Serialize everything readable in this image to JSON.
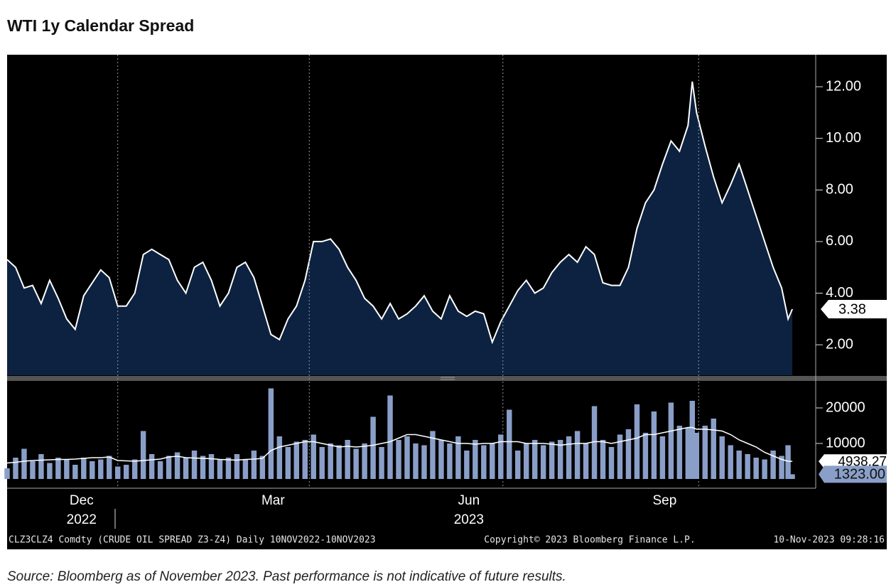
{
  "chart_data": [
    {
      "type": "area",
      "title": "WTI 1y Calendar Spread",
      "x": [
        0,
        4,
        8,
        12,
        16,
        20,
        24,
        28,
        32,
        36,
        40,
        44,
        48,
        52,
        56,
        60,
        64,
        68,
        72,
        76,
        80,
        84,
        88,
        92,
        96,
        100,
        104,
        108,
        112,
        116,
        120,
        124,
        128,
        132,
        136,
        140,
        144,
        148,
        152,
        156,
        160,
        164,
        168,
        172,
        176,
        180,
        184,
        188,
        192,
        196,
        200,
        204,
        208,
        212,
        216,
        220,
        224,
        228,
        232,
        236,
        240,
        244,
        248,
        252,
        256,
        260,
        264,
        268,
        272,
        276,
        280,
        284,
        288,
        292,
        296,
        300,
        304,
        308,
        312,
        316,
        320,
        322,
        324,
        328,
        332,
        336,
        340,
        344,
        348,
        352,
        356,
        360,
        364,
        367,
        369
      ],
      "values": [
        5.3,
        5.0,
        4.2,
        4.3,
        3.6,
        4.5,
        3.8,
        3.0,
        2.6,
        3.9,
        4.4,
        4.9,
        4.6,
        3.5,
        3.5,
        4.0,
        5.5,
        5.7,
        5.5,
        5.3,
        4.5,
        4.0,
        5.0,
        5.2,
        4.5,
        3.5,
        4.0,
        5.0,
        5.2,
        4.6,
        3.5,
        2.4,
        2.2,
        3.0,
        3.5,
        4.5,
        6.0,
        6.0,
        6.1,
        5.7,
        5.0,
        4.5,
        3.8,
        3.5,
        3.0,
        3.6,
        3.0,
        3.2,
        3.5,
        3.9,
        3.3,
        3.0,
        3.9,
        3.3,
        3.1,
        3.3,
        3.2,
        2.1,
        2.9,
        3.5,
        4.1,
        4.5,
        4.0,
        4.2,
        4.8,
        5.2,
        5.5,
        5.2,
        5.8,
        5.5,
        4.4,
        4.3,
        4.3,
        5.0,
        6.5,
        7.5,
        8.0,
        9.0,
        9.9,
        9.5,
        10.5,
        12.2,
        11.0,
        9.7,
        8.5,
        7.5,
        8.2,
        9.0,
        8.0,
        7.0,
        6.0,
        5.0,
        4.2,
        3.0,
        3.38
      ],
      "color": "#ffffff",
      "fill": "#0c2240",
      "xlim": [
        0,
        380
      ],
      "ylim": [
        0.82,
        13.24
      ],
      "yticks": [
        {
          "value": 2,
          "label": "2.00"
        },
        {
          "value": 4,
          "label": "4.00"
        },
        {
          "value": 6,
          "label": "6.00"
        },
        {
          "value": 8,
          "label": "8.00"
        },
        {
          "value": 10,
          "label": "10.00"
        },
        {
          "value": 12,
          "label": "12.00"
        }
      ],
      "xticks": [
        {
          "value": 35,
          "label": "Dec"
        },
        {
          "value": 125,
          "label": "Mar"
        },
        {
          "value": 217,
          "label": "Jun"
        },
        {
          "value": 309,
          "label": "Sep"
        }
      ],
      "year_ticks": [
        {
          "value": 35,
          "label": "2022"
        },
        {
          "value": 217,
          "label": "2023"
        }
      ],
      "xgrid": [
        52,
        142,
        233,
        325
      ]
    },
    {
      "type": "bar",
      "x": [
        0,
        4,
        8,
        12,
        16,
        20,
        24,
        28,
        32,
        36,
        40,
        44,
        48,
        52,
        56,
        60,
        64,
        68,
        72,
        76,
        80,
        84,
        88,
        92,
        96,
        100,
        104,
        108,
        112,
        116,
        120,
        124,
        128,
        132,
        136,
        140,
        144,
        148,
        152,
        156,
        160,
        164,
        168,
        172,
        176,
        180,
        184,
        188,
        192,
        196,
        200,
        204,
        208,
        212,
        216,
        220,
        224,
        228,
        232,
        236,
        240,
        244,
        248,
        252,
        256,
        260,
        264,
        268,
        272,
        276,
        280,
        284,
        288,
        292,
        296,
        300,
        304,
        308,
        312,
        316,
        320,
        322,
        324,
        328,
        332,
        336,
        340,
        344,
        348,
        352,
        356,
        360,
        364,
        367,
        369
      ],
      "series": [
        {
          "color": "#8a9fc8",
          "last_value_label": "1323.00",
          "values": [
            3000,
            6000,
            8500,
            5000,
            7000,
            4500,
            6000,
            5500,
            4000,
            6000,
            5000,
            5500,
            6500,
            3500,
            4000,
            5500,
            13500,
            7000,
            5000,
            6500,
            7500,
            6000,
            8000,
            6500,
            7000,
            5500,
            6000,
            7000,
            5500,
            8000,
            6500,
            25500,
            12000,
            9000,
            10500,
            11000,
            12500,
            9000,
            10000,
            9500,
            11000,
            8500,
            10000,
            17500,
            9000,
            23500,
            11000,
            12000,
            10000,
            9500,
            13500,
            11000,
            10000,
            12000,
            8000,
            11000,
            9500,
            10000,
            12500,
            19500,
            8000,
            10000,
            11000,
            9500,
            10500,
            11000,
            12000,
            13500,
            10000,
            20500,
            11000,
            9000,
            12500,
            14000,
            21000,
            13000,
            19000,
            12000,
            21500,
            15000,
            14500,
            22000,
            13000,
            15000,
            17000,
            12000,
            9500,
            8000,
            7000,
            6000,
            5500,
            8000,
            6500,
            9500,
            1323
          ]
        },
        {
          "color": "#ffffff",
          "last_value_label": "4938.27",
          "values": [
            4500,
            4700,
            5000,
            5200,
            5300,
            5400,
            5500,
            5500,
            5600,
            5800,
            6000,
            6000,
            6200,
            5200,
            5100,
            5000,
            5200,
            5400,
            5600,
            6200,
            6400,
            6000,
            5900,
            5800,
            5700,
            5500,
            5400,
            5300,
            5500,
            5600,
            5800,
            8000,
            9000,
            9500,
            10000,
            10500,
            10500,
            10000,
            9500,
            9000,
            9200,
            9000,
            9200,
            9500,
            10000,
            10500,
            11500,
            12500,
            12500,
            12000,
            11500,
            11000,
            10500,
            10000,
            10000,
            9800,
            10000,
            10000,
            10500,
            10500,
            10500,
            10000,
            10000,
            10000,
            9800,
            9500,
            9800,
            10000,
            10000,
            10500,
            10500,
            10000,
            10500,
            11000,
            11500,
            12500,
            12500,
            13000,
            13500,
            14000,
            14500,
            14500,
            14000,
            14000,
            13800,
            13500,
            12500,
            11000,
            10000,
            9000,
            7500,
            6500,
            5500,
            5000,
            4938.27
          ]
        }
      ],
      "xlim": [
        0,
        380
      ],
      "ylim": [
        -2600,
        27400
      ],
      "yticks": [
        10000,
        20000
      ]
    }
  ],
  "footer": {
    "left": "CLZ3CLZ4 Comdty (CRUDE OIL SPREAD  Z3-Z4)  Daily 10NOV2022-10NOV2023",
    "center": "Copyright© 2023 Bloomberg Finance L.P.",
    "right": "10-Nov-2023 09:28:16"
  },
  "source": "Source: Bloomberg as of November 2023. Past performance is not indicative of future results."
}
